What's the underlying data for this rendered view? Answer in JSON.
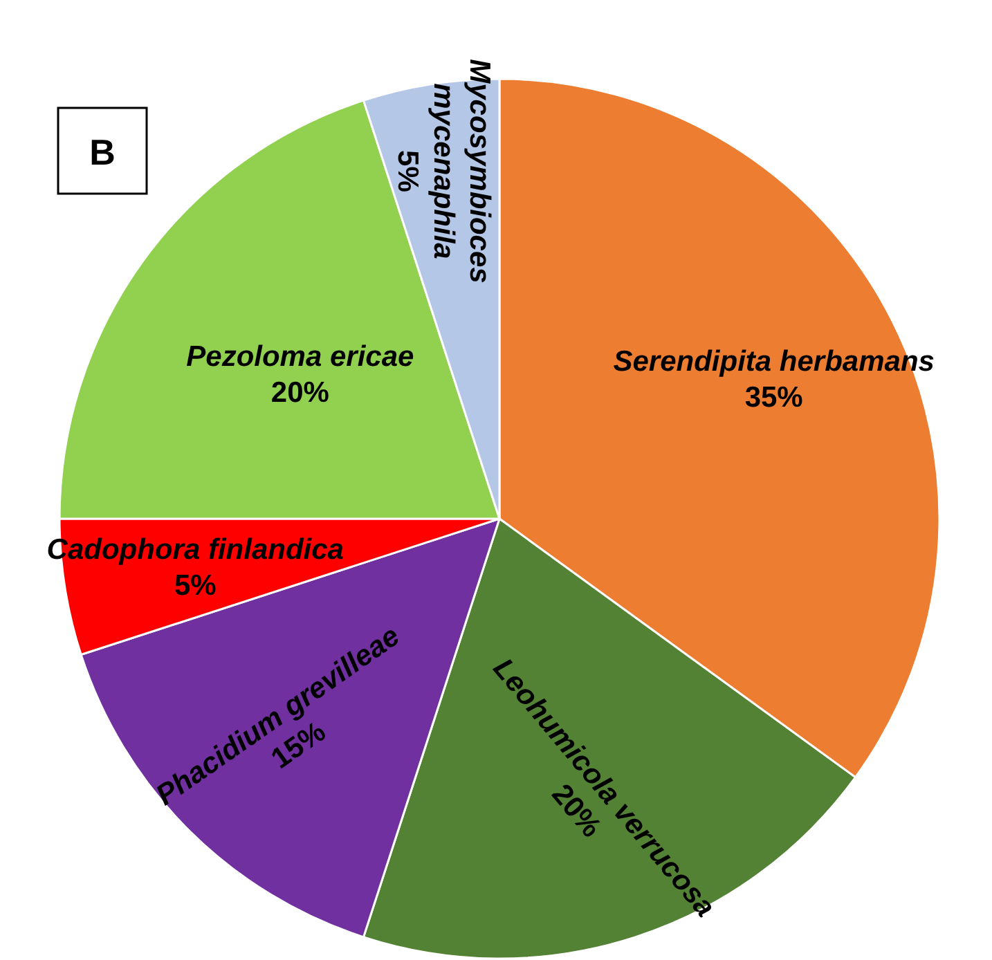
{
  "chart_data": {
    "type": "pie",
    "annotations": [
      "B"
    ],
    "categories": [
      "Serendipita herbamans",
      "Leohumicola verrucosa",
      "Phacidium grevilleae",
      "Cadophora finlandica",
      "Pezoloma ericae",
      "Mycosymbioces mycenaphila"
    ],
    "values": [
      35,
      20,
      15,
      5,
      20,
      5
    ],
    "colors": [
      "#ed7d31",
      "#548235",
      "#7030a0",
      "#ff0000",
      "#92d050",
      "#b4c7e7"
    ],
    "value_labels": [
      "35%",
      "20%",
      "15%",
      "5%",
      "20%",
      "5%"
    ]
  }
}
